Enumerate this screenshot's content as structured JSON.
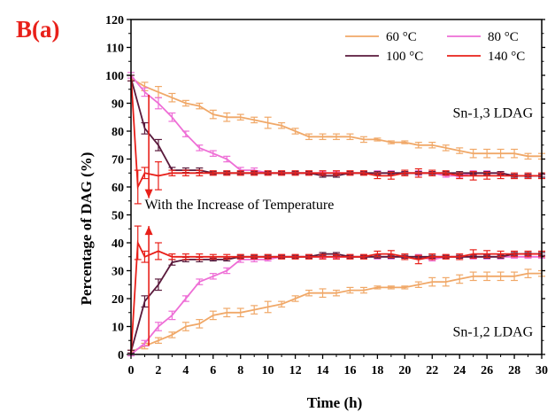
{
  "panel_label": "B(a)",
  "colors": {
    "panel_label": "#e8201a",
    "c60": "#f0a868",
    "c80": "#ee6ed6",
    "c100": "#5a1a3c",
    "c140": "#e8201a",
    "annotation_arrow": "#e8201a"
  },
  "chart_data": {
    "type": "line",
    "xlabel": "Time (h)",
    "ylabel": "Percentage of DAG (%)",
    "xlim": [
      0,
      30
    ],
    "ylim": [
      0,
      120
    ],
    "xticks": [
      0,
      2,
      4,
      6,
      8,
      10,
      12,
      14,
      16,
      18,
      20,
      22,
      24,
      26,
      28,
      30
    ],
    "yticks": [
      0,
      10,
      20,
      30,
      40,
      50,
      60,
      70,
      80,
      90,
      100,
      110,
      120
    ],
    "grid": false,
    "legend_position": "top-right",
    "series": [
      {
        "name": "60 °C",
        "group": "Sn-1,3 LDAG",
        "color_key": "c60",
        "x": [
          0,
          1,
          2,
          3,
          4,
          5,
          6,
          7,
          8,
          9,
          10,
          11,
          12,
          13,
          14,
          15,
          16,
          17,
          18,
          19,
          20,
          21,
          22,
          23,
          24,
          25,
          26,
          27,
          28,
          29,
          30
        ],
        "y": [
          99,
          96,
          94,
          92,
          90,
          89,
          86,
          85,
          85,
          84,
          83,
          82,
          80,
          78,
          78,
          78,
          78,
          77,
          77,
          76,
          76,
          75,
          75,
          74,
          73,
          72,
          72,
          72,
          72,
          71,
          71
        ],
        "err": [
          1,
          1.5,
          2,
          1.5,
          1,
          1,
          1.5,
          1.5,
          1,
          1,
          2,
          1,
          1,
          1,
          1,
          1,
          1,
          1,
          0.5,
          0.5,
          0.5,
          1,
          1,
          1,
          1,
          1.5,
          1.5,
          1.5,
          1.5,
          1,
          1
        ]
      },
      {
        "name": "80 °C",
        "group": "Sn-1,3 LDAG",
        "color_key": "c80",
        "x": [
          0,
          1,
          2,
          3,
          4,
          5,
          6,
          7,
          8,
          9,
          10,
          11,
          12,
          13,
          14,
          15,
          16,
          17,
          18,
          19,
          20,
          21,
          22,
          23,
          24,
          25,
          26,
          27,
          28,
          29,
          30
        ],
        "y": [
          100,
          94,
          90,
          85,
          79,
          74,
          72,
          70,
          66,
          66,
          65,
          65,
          65,
          65,
          65,
          65,
          65,
          65,
          65,
          65,
          65,
          65,
          65,
          64,
          64,
          65,
          65,
          65,
          64,
          64,
          64
        ],
        "err": [
          1,
          1.5,
          2,
          1.5,
          1,
          1,
          1,
          1,
          1,
          0.8,
          0.5,
          0.5,
          0.5,
          0.5,
          0.5,
          0.5,
          0.5,
          0.5,
          0.8,
          0.8,
          0.5,
          0.8,
          0.5,
          0.5,
          0.5,
          0.8,
          0.8,
          0.5,
          0.5,
          0.5,
          0.5
        ]
      },
      {
        "name": "100 °C",
        "group": "Sn-1,3 LDAG",
        "color_key": "c100",
        "x": [
          0,
          1,
          2,
          3,
          4,
          5,
          6,
          7,
          8,
          9,
          10,
          11,
          12,
          13,
          14,
          15,
          16,
          17,
          18,
          19,
          20,
          21,
          22,
          23,
          24,
          25,
          26,
          27,
          28,
          29,
          30
        ],
        "y": [
          99,
          81,
          75,
          66,
          66,
          66,
          65,
          65,
          65,
          65,
          65,
          65,
          65,
          65,
          64,
          64,
          65,
          65,
          65,
          65,
          65,
          65,
          65,
          65,
          65,
          65,
          65,
          65,
          64,
          64,
          64
        ],
        "err": [
          1,
          2,
          2,
          1,
          0.8,
          0.8,
          0.5,
          0.5,
          0.5,
          0.5,
          0.5,
          0.5,
          0.5,
          0.5,
          0.5,
          0.5,
          0.5,
          0.5,
          0.5,
          0.5,
          0.5,
          0.5,
          0.5,
          0.5,
          0.5,
          0.5,
          0.5,
          0.5,
          0.5,
          0.5,
          0.5
        ]
      },
      {
        "name": "140 °C",
        "group": "Sn-1,3 LDAG",
        "color_key": "c140",
        "x": [
          0,
          0.5,
          1,
          2,
          3,
          4,
          5,
          6,
          7,
          8,
          9,
          10,
          11,
          12,
          13,
          14,
          15,
          16,
          17,
          18,
          19,
          20,
          21,
          22,
          23,
          24,
          25,
          26,
          27,
          28,
          29,
          30
        ],
        "y": [
          100,
          60,
          65,
          64,
          65,
          65,
          65,
          65,
          65,
          65,
          65,
          65,
          65,
          65,
          65,
          65,
          65,
          65,
          65,
          64,
          64,
          65,
          65,
          65,
          65,
          64,
          64,
          64,
          64,
          64,
          64,
          64
        ],
        "err": [
          0,
          6,
          2,
          5,
          1,
          1,
          1,
          0.8,
          0.8,
          0.8,
          0.8,
          0.8,
          0.8,
          0.8,
          0.8,
          0.8,
          0.8,
          0.8,
          0.8,
          1,
          1.2,
          1,
          1.5,
          1,
          0.8,
          1,
          1.5,
          1.2,
          1,
          1,
          1,
          1
        ]
      },
      {
        "name": "60 °C",
        "group": "Sn-1,2 LDAG",
        "color_key": "c60",
        "x": [
          0,
          1,
          2,
          3,
          4,
          5,
          6,
          7,
          8,
          9,
          10,
          11,
          12,
          13,
          14,
          15,
          16,
          17,
          18,
          19,
          20,
          21,
          22,
          23,
          24,
          25,
          26,
          27,
          28,
          29,
          30
        ],
        "y": [
          1,
          3,
          5,
          7,
          10,
          11,
          14,
          15,
          15,
          16,
          17,
          18,
          20,
          22,
          22,
          22,
          23,
          23,
          24,
          24,
          24,
          25,
          26,
          26,
          27,
          28,
          28,
          28,
          28,
          29,
          29
        ],
        "err": [
          0.5,
          1,
          1,
          1,
          1.5,
          1.5,
          1.5,
          1.5,
          1.5,
          1.5,
          2,
          1,
          1,
          1,
          1.5,
          1,
          1,
          1,
          0.5,
          0.5,
          0.5,
          1,
          1.5,
          1.5,
          1.5,
          1.5,
          1.5,
          1.5,
          1.5,
          1.5,
          1
        ]
      },
      {
        "name": "80 °C",
        "group": "Sn-1,2 LDAG",
        "color_key": "c80",
        "x": [
          0,
          1,
          2,
          3,
          4,
          5,
          6,
          7,
          8,
          9,
          10,
          11,
          12,
          13,
          14,
          15,
          16,
          17,
          18,
          19,
          20,
          21,
          22,
          23,
          24,
          25,
          26,
          27,
          28,
          29,
          30
        ],
        "y": [
          0,
          4,
          10,
          14,
          20,
          26,
          28,
          30,
          34,
          34,
          34,
          35,
          35,
          35,
          35,
          35,
          35,
          35,
          35,
          35,
          35,
          35,
          34,
          35,
          35,
          35,
          35,
          35,
          35,
          35,
          35
        ],
        "err": [
          0.5,
          1,
          1.5,
          1.5,
          1,
          1,
          1,
          1,
          1,
          0.8,
          0.5,
          0.5,
          0.5,
          0.5,
          0.5,
          0.5,
          0.5,
          0.5,
          0.8,
          0.8,
          0.5,
          0.8,
          0.5,
          0.5,
          0.5,
          0.8,
          0.8,
          0.8,
          0.5,
          0.5,
          0.5
        ]
      },
      {
        "name": "100 °C",
        "group": "Sn-1,2 LDAG",
        "color_key": "c100",
        "x": [
          0,
          1,
          2,
          3,
          4,
          5,
          6,
          7,
          8,
          9,
          10,
          11,
          12,
          13,
          14,
          15,
          16,
          17,
          18,
          19,
          20,
          21,
          22,
          23,
          24,
          25,
          26,
          27,
          28,
          29,
          30
        ],
        "y": [
          1,
          19,
          25,
          33,
          34,
          34,
          34,
          34,
          35,
          35,
          35,
          35,
          35,
          35,
          36,
          36,
          35,
          35,
          35,
          35,
          35,
          35,
          35,
          35,
          35,
          35,
          35,
          35,
          36,
          36,
          36
        ],
        "err": [
          0.5,
          2,
          2,
          1,
          0.8,
          0.8,
          0.5,
          0.5,
          0.5,
          0.5,
          0.5,
          0.5,
          0.5,
          0.5,
          0.5,
          0.5,
          0.5,
          0.5,
          0.5,
          0.5,
          0.5,
          0.5,
          0.5,
          0.5,
          0.5,
          0.5,
          0.5,
          0.5,
          0.5,
          0.5,
          0.5
        ]
      },
      {
        "name": "140 °C",
        "group": "Sn-1,2 LDAG",
        "color_key": "c140",
        "x": [
          0,
          0.5,
          1,
          2,
          3,
          4,
          5,
          6,
          7,
          8,
          9,
          10,
          11,
          12,
          13,
          14,
          15,
          16,
          17,
          18,
          19,
          20,
          21,
          22,
          23,
          24,
          25,
          26,
          27,
          28,
          29,
          30
        ],
        "y": [
          0,
          40,
          35,
          37,
          35,
          35,
          35,
          35,
          35,
          35,
          35,
          35,
          35,
          35,
          35,
          35,
          35,
          35,
          35,
          36,
          36,
          35,
          34,
          35,
          35,
          35,
          36,
          36,
          36,
          36,
          36,
          36
        ],
        "err": [
          0,
          6,
          2,
          3,
          1,
          1,
          1,
          0.8,
          0.8,
          0.8,
          0.8,
          0.8,
          0.8,
          0.8,
          0.8,
          0.8,
          0.8,
          0.8,
          0.8,
          1,
          1.2,
          1,
          1.5,
          1,
          0.8,
          1,
          1.5,
          1.2,
          1,
          1,
          1,
          1
        ]
      }
    ],
    "annotations": [
      {
        "text": "Sn-1,3 LDAG",
        "x": 23.5,
        "y": 85
      },
      {
        "text": "Sn-1,2 LDAG",
        "x": 23.5,
        "y": 6.5
      },
      {
        "text": "With the Increase of Temperature",
        "x": 1.0,
        "y": 52
      }
    ],
    "arrows": [
      {
        "x": 1.3,
        "from_y": 93,
        "to_y": 56
      },
      {
        "x": 1.3,
        "from_y": 3,
        "to_y": 46
      }
    ],
    "legend": [
      "60 °C",
      "80 °C",
      "100 °C",
      "140 °C"
    ]
  }
}
